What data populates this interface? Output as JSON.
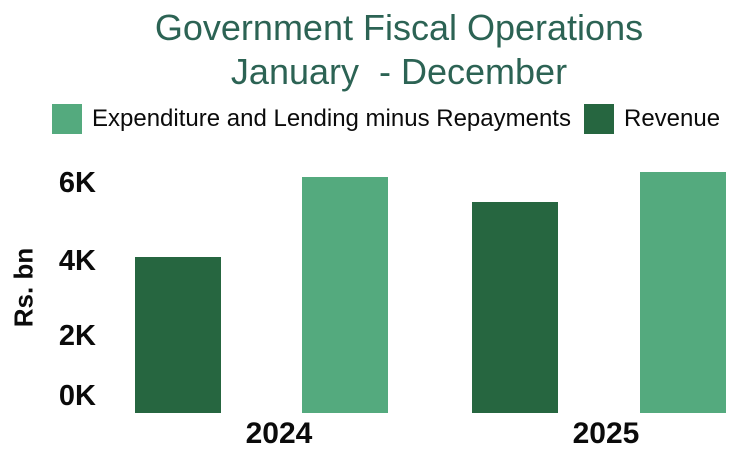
{
  "title": {
    "line1": "Government Fiscal Operations",
    "line2": "January  - December"
  },
  "legend": [
    {
      "label": "Expenditure and Lending minus Repayments",
      "color": "#54AA7E"
    },
    {
      "label": "Revenue",
      "color": "#266640"
    }
  ],
  "y_axis": {
    "label": "Rs. bn",
    "ticks": [
      "6K",
      "4K",
      "2K",
      "0K"
    ]
  },
  "x_axis": {
    "categories": [
      "2024",
      "2025"
    ]
  },
  "chart_data": {
    "type": "bar",
    "categories": [
      "2024",
      "2025"
    ],
    "series": [
      {
        "name": "Revenue",
        "color": "#266640",
        "values": [
          4050,
          5480
        ]
      },
      {
        "name": "Expenditure and Lending minus Repayments",
        "color": "#54AA7E",
        "values": [
          6130,
          6260
        ]
      }
    ],
    "title": "Government Fiscal Operations",
    "subtitle": "January - December",
    "xlabel": "",
    "ylabel": "Rs. bn",
    "ylim": [
      0,
      6600
    ],
    "y_ticks": [
      0,
      2000,
      4000,
      6000
    ],
    "y_tick_labels": [
      "0K",
      "2K",
      "4K",
      "6K"
    ],
    "grid": false,
    "legend_position": "top",
    "bar_order_within_group": [
      "Revenue",
      "Expenditure and Lending minus Repayments"
    ]
  },
  "colors": {
    "revenue": "#266640",
    "expenditure": "#54AA7E",
    "title_text": "#2C6354",
    "axis_text": "#0b0b0b",
    "background": "#ffffff"
  }
}
